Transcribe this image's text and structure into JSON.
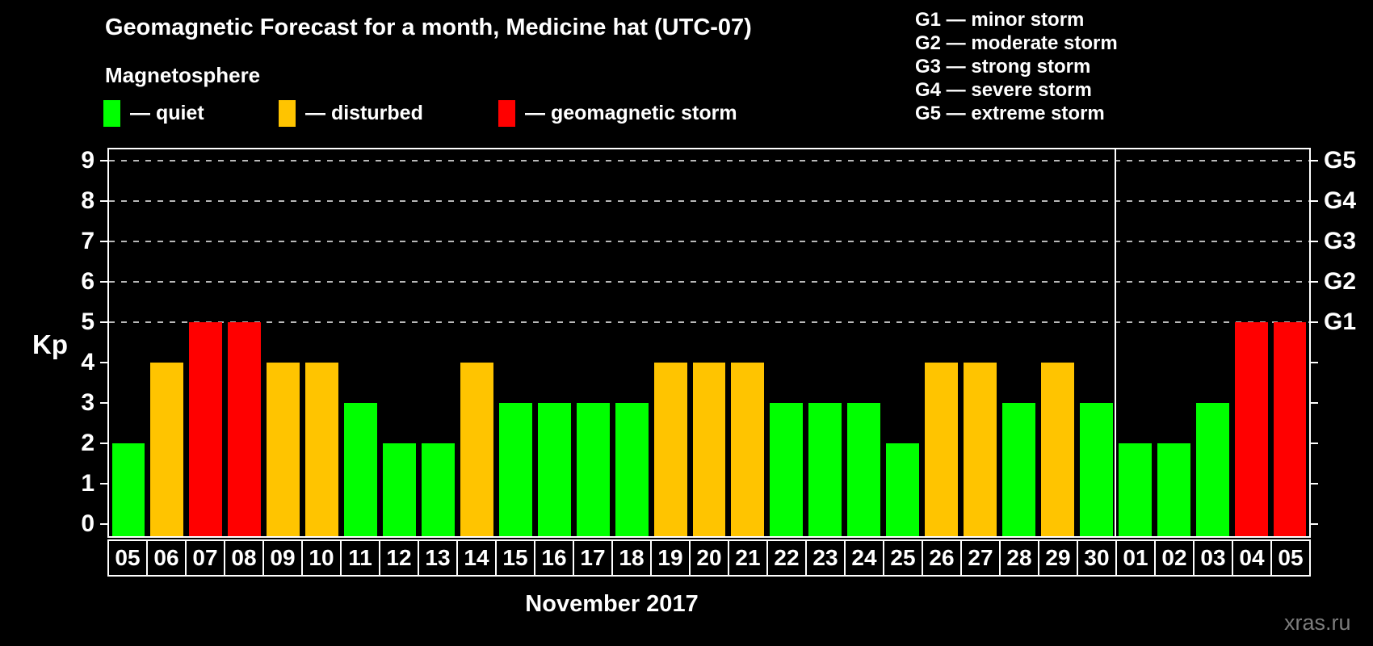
{
  "title": "Geomagnetic Forecast for a month, Medicine hat (UTC-07)",
  "subtitle": "Magnetosphere",
  "legend": {
    "quiet": {
      "label": "— quiet",
      "color": "#00ff00"
    },
    "disturbed": {
      "label": "— disturbed",
      "color": "#ffc400"
    },
    "storm": {
      "label": "— geomagnetic storm",
      "color": "#ff0000"
    }
  },
  "storm_scale_legend": [
    "G1 — minor storm",
    "G2 — moderate storm",
    "G3 — strong storm",
    "G4 — severe storm",
    "G5 — extreme storm"
  ],
  "kp_axis_label": "Kp",
  "month_label": "November 2017",
  "watermark": "xras.ru",
  "colors": {
    "background": "#000000",
    "text": "#ffffff",
    "grid": "#b9b9b9",
    "watermark": "#7d7d7d",
    "quiet": "#00ff00",
    "disturbed": "#ffc400",
    "storm": "#ff0000"
  },
  "chart_data": {
    "type": "bar",
    "title": "Geomagnetic Forecast for a month, Medicine hat (UTC-07)",
    "xlabel": "November 2017",
    "ylabel": "Kp",
    "categories": [
      "05",
      "06",
      "07",
      "08",
      "09",
      "10",
      "11",
      "12",
      "13",
      "14",
      "15",
      "16",
      "17",
      "18",
      "19",
      "20",
      "21",
      "22",
      "23",
      "24",
      "25",
      "26",
      "27",
      "28",
      "29",
      "30",
      "01",
      "02",
      "03",
      "04",
      "05"
    ],
    "values": [
      2,
      4,
      5,
      5,
      4,
      4,
      3,
      2,
      2,
      4,
      3,
      3,
      3,
      3,
      4,
      4,
      4,
      3,
      3,
      3,
      2,
      4,
      4,
      3,
      4,
      3,
      2,
      2,
      3,
      5,
      5
    ],
    "ylim": [
      -0.3,
      9.6
    ],
    "yticks": [
      0,
      1,
      2,
      3,
      4,
      5,
      6,
      7,
      8,
      9
    ],
    "gridlines_at": [
      5,
      6,
      7,
      8,
      9
    ],
    "right_axis_labels": [
      {
        "kp": 5,
        "label": "G1"
      },
      {
        "kp": 6,
        "label": "G2"
      },
      {
        "kp": 7,
        "label": "G3"
      },
      {
        "kp": 8,
        "label": "G4"
      },
      {
        "kp": 9,
        "label": "G5"
      }
    ],
    "color_rules": {
      "storm_min_kp": 5,
      "disturbed_kp": 4
    },
    "month_divider_after_index": 25,
    "legend_position": "top-left",
    "grid": "dashed horizontal lines at G1–G5 levels only"
  }
}
